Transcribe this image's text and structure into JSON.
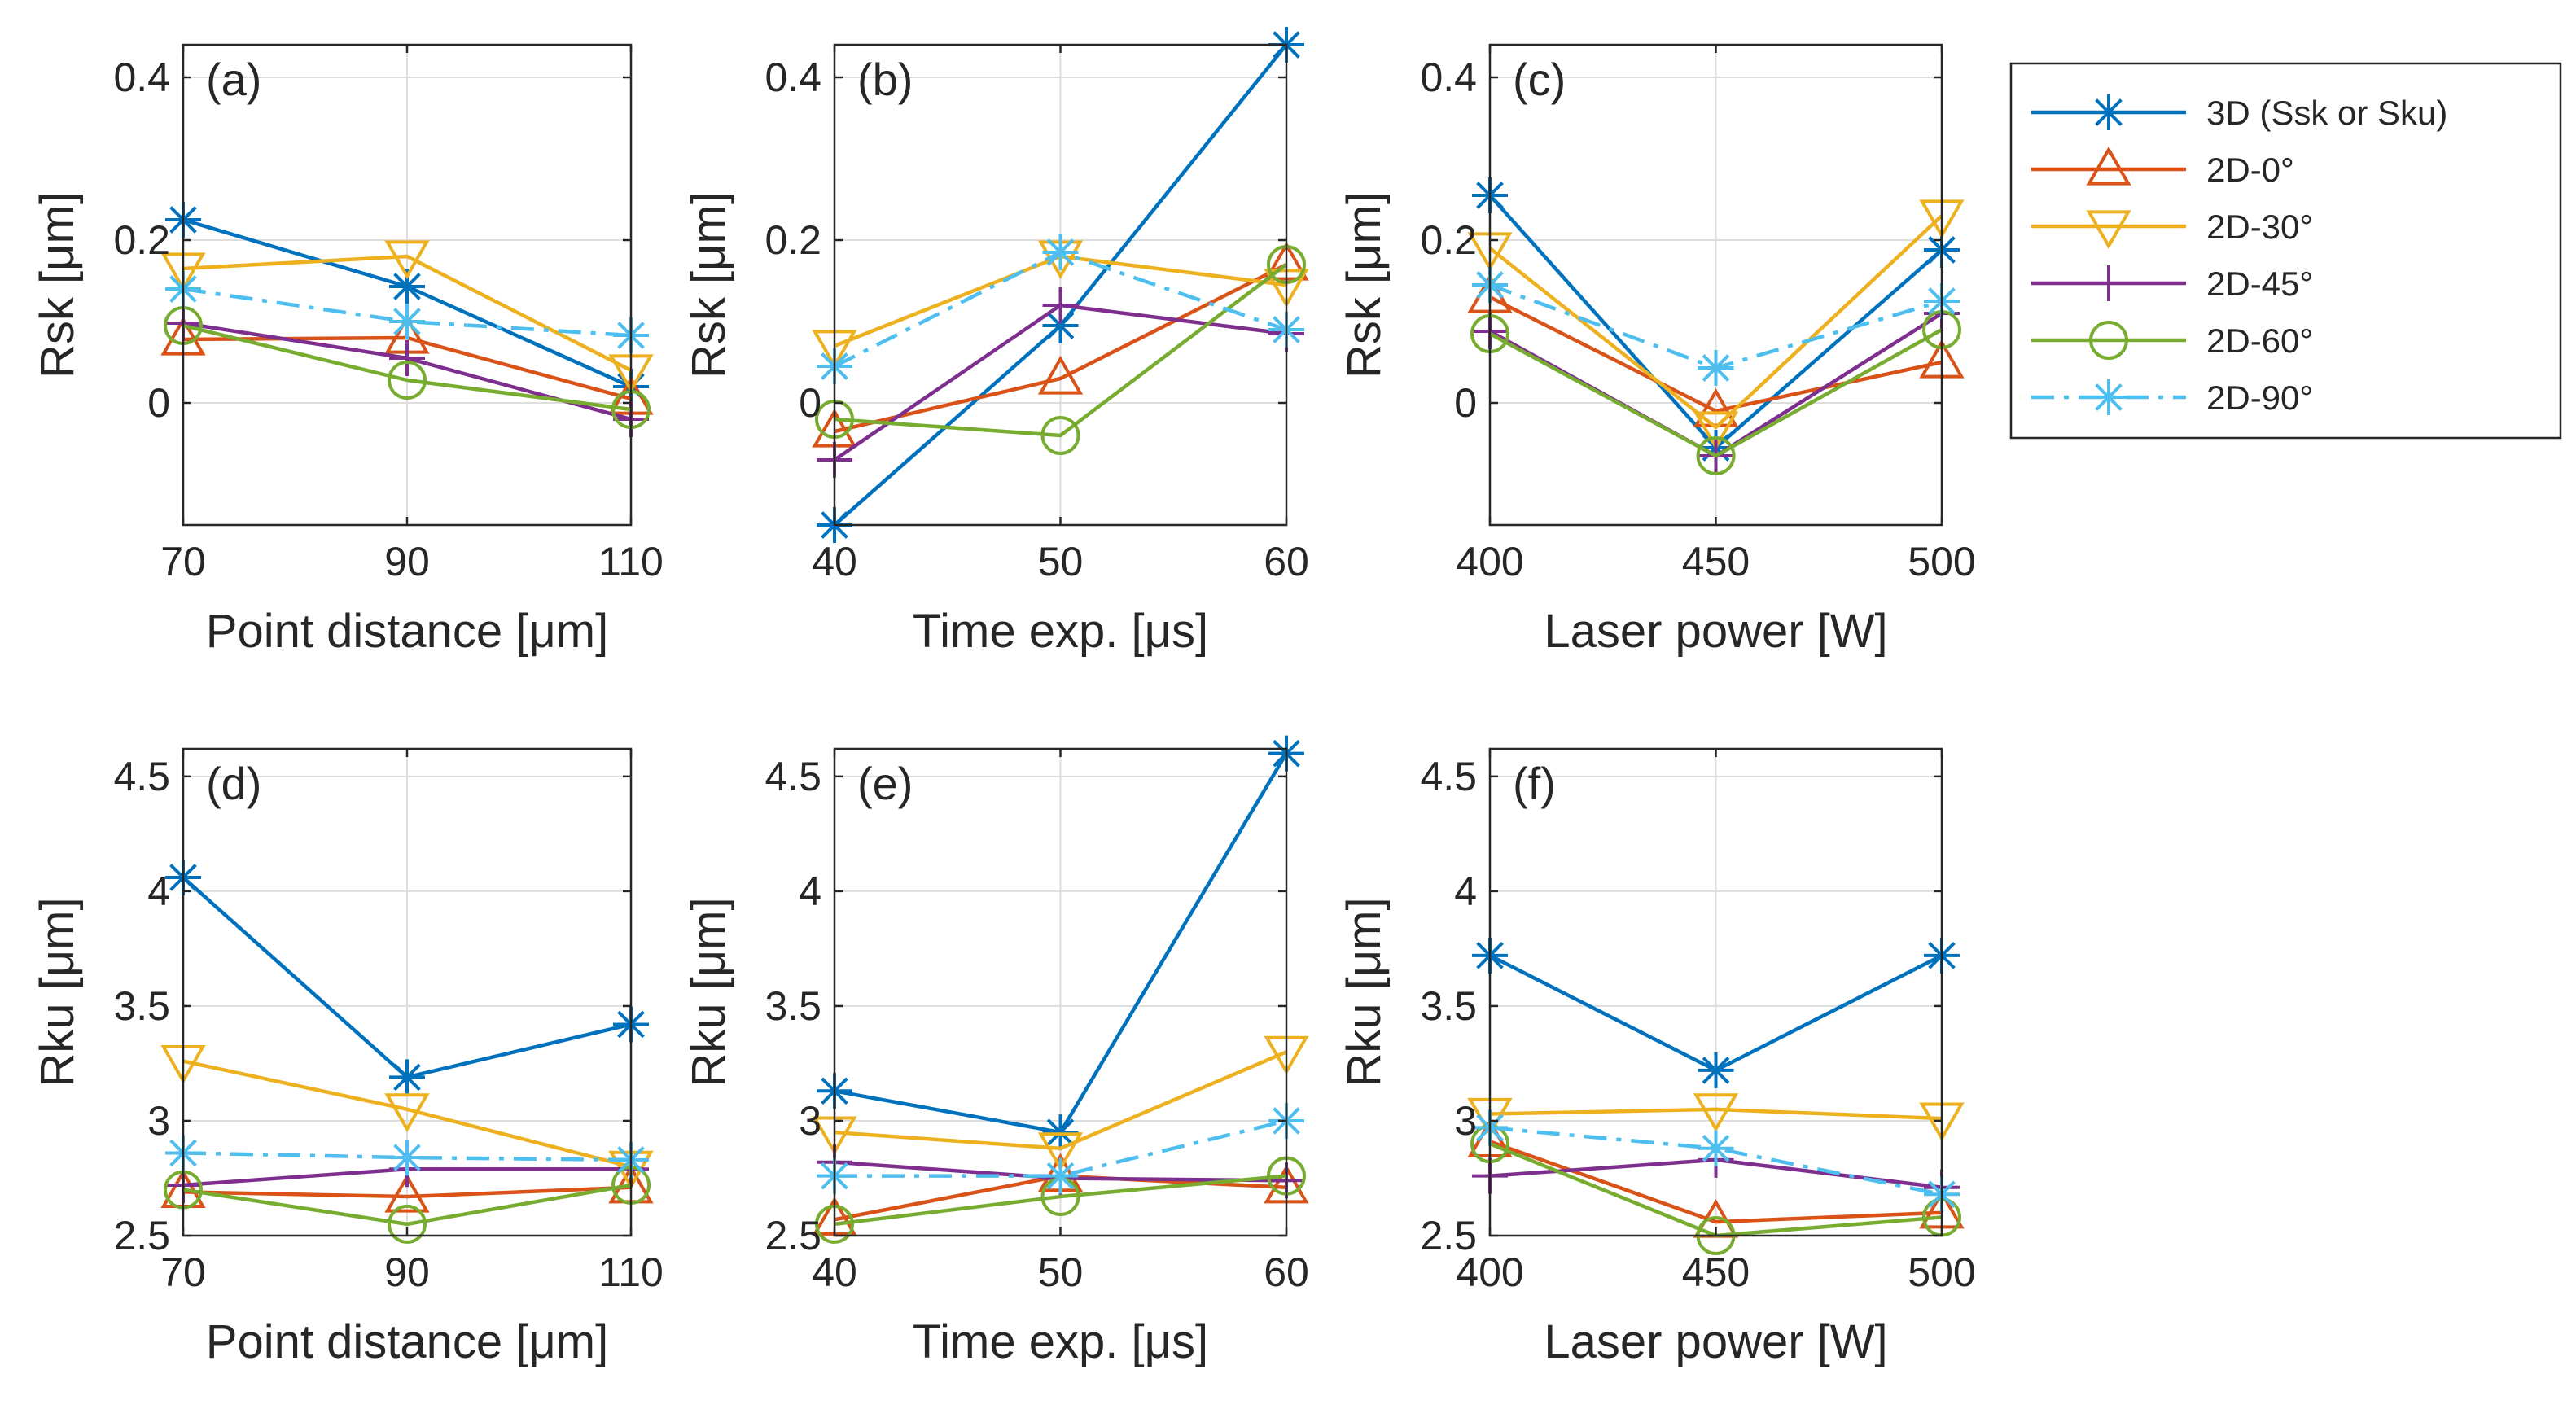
{
  "series_styles": [
    {
      "name": "3D (Ssk or Sku)",
      "color": "#0072BD",
      "marker": "asterisk",
      "dash": "solid"
    },
    {
      "name": "2D-0°",
      "color": "#D95319",
      "marker": "triangle-up",
      "dash": "solid"
    },
    {
      "name": "2D-30°",
      "color": "#EDB120",
      "marker": "triangle-down",
      "dash": "solid"
    },
    {
      "name": "2D-45°",
      "color": "#7E2F8E",
      "marker": "plus",
      "dash": "solid"
    },
    {
      "name": "2D-60°",
      "color": "#77AC30",
      "marker": "circle",
      "dash": "solid"
    },
    {
      "name": "2D-90°",
      "color": "#4DBEEE",
      "marker": "asterisk",
      "dash": "dashdot"
    }
  ],
  "chart_data": [
    {
      "type": "line",
      "panel_label": "(a)",
      "xlabel": "Point distance [μm]",
      "ylabel": "Rsk [μm]",
      "x": [
        70,
        90,
        110
      ],
      "xticks": [
        "70",
        "90",
        "110"
      ],
      "ylim": [
        -0.15,
        0.44
      ],
      "yticks": [
        0,
        0.2,
        0.4
      ],
      "ytick_labels": [
        "0",
        "0.2",
        "0.4"
      ],
      "grid": true,
      "series": [
        {
          "name": "3D (Ssk or Sku)",
          "values": [
            0.225,
            0.143,
            0.02
          ]
        },
        {
          "name": "2D-0°",
          "values": [
            0.078,
            0.08,
            0.005
          ]
        },
        {
          "name": "2D-30°",
          "values": [
            0.165,
            0.18,
            0.04
          ]
        },
        {
          "name": "2D-45°",
          "values": [
            0.098,
            0.055,
            -0.02
          ]
        },
        {
          "name": "2D-60°",
          "values": [
            0.095,
            0.028,
            -0.008
          ]
        },
        {
          "name": "2D-90°",
          "values": [
            0.14,
            0.1,
            0.083
          ]
        }
      ]
    },
    {
      "type": "line",
      "panel_label": "(b)",
      "xlabel": "Time exp. [μs]",
      "ylabel": "Rsk [μm]",
      "x": [
        40,
        50,
        60
      ],
      "xticks": [
        "40",
        "50",
        "60"
      ],
      "ylim": [
        -0.15,
        0.44
      ],
      "yticks": [
        0,
        0.2,
        0.4
      ],
      "ytick_labels": [
        "0",
        "0.2",
        "0.4"
      ],
      "grid": true,
      "series": [
        {
          "name": "3D (Ssk or Sku)",
          "values": [
            -0.15,
            0.095,
            0.44
          ]
        },
        {
          "name": "2D-0°",
          "values": [
            -0.035,
            0.03,
            0.17
          ]
        },
        {
          "name": "2D-30°",
          "values": [
            0.07,
            0.18,
            0.145
          ]
        },
        {
          "name": "2D-45°",
          "values": [
            -0.07,
            0.12,
            0.085
          ]
        },
        {
          "name": "2D-60°",
          "values": [
            -0.02,
            -0.04,
            0.17
          ]
        },
        {
          "name": "2D-90°",
          "values": [
            0.045,
            0.185,
            0.09
          ]
        }
      ]
    },
    {
      "type": "line",
      "panel_label": "(c)",
      "xlabel": "Laser power [W]",
      "ylabel": "Rsk [μm]",
      "x": [
        400,
        450,
        500
      ],
      "xticks": [
        "400",
        "450",
        "500"
      ],
      "ylim": [
        -0.15,
        0.44
      ],
      "yticks": [
        0,
        0.2,
        0.4
      ],
      "ytick_labels": [
        "0",
        "0.2",
        "0.4"
      ],
      "grid": true,
      "series": [
        {
          "name": "3D (Ssk or Sku)",
          "values": [
            0.255,
            -0.055,
            0.188
          ]
        },
        {
          "name": "2D-0°",
          "values": [
            0.13,
            -0.01,
            0.05
          ]
        },
        {
          "name": "2D-30°",
          "values": [
            0.19,
            -0.03,
            0.23
          ]
        },
        {
          "name": "2D-45°",
          "values": [
            0.088,
            -0.065,
            0.11
          ]
        },
        {
          "name": "2D-60°",
          "values": [
            0.085,
            -0.065,
            0.09
          ]
        },
        {
          "name": "2D-90°",
          "values": [
            0.145,
            0.043,
            0.125
          ]
        }
      ]
    },
    {
      "type": "line",
      "panel_label": "(d)",
      "xlabel": "Point distance [μm]",
      "ylabel": "Rku [μm]",
      "x": [
        70,
        90,
        110
      ],
      "xticks": [
        "70",
        "90",
        "110"
      ],
      "ylim": [
        2.5,
        4.62
      ],
      "yticks": [
        2.5,
        3,
        3.5,
        4,
        4.5
      ],
      "ytick_labels": [
        "2.5",
        "3",
        "3.5",
        "4",
        "4.5"
      ],
      "grid": true,
      "series": [
        {
          "name": "3D (Ssk or Sku)",
          "values": [
            4.06,
            3.19,
            3.42
          ]
        },
        {
          "name": "2D-0°",
          "values": [
            2.69,
            2.67,
            2.71
          ]
        },
        {
          "name": "2D-30°",
          "values": [
            3.26,
            3.05,
            2.8
          ]
        },
        {
          "name": "2D-45°",
          "values": [
            2.72,
            2.79,
            2.79
          ]
        },
        {
          "name": "2D-60°",
          "values": [
            2.7,
            2.55,
            2.72
          ]
        },
        {
          "name": "2D-90°",
          "values": [
            2.86,
            2.84,
            2.83
          ]
        }
      ]
    },
    {
      "type": "line",
      "panel_label": "(e)",
      "xlabel": "Time exp. [μs]",
      "ylabel": "Rku [μm]",
      "x": [
        40,
        50,
        60
      ],
      "xticks": [
        "40",
        "50",
        "60"
      ],
      "ylim": [
        2.5,
        4.62
      ],
      "yticks": [
        2.5,
        3,
        3.5,
        4,
        4.5
      ],
      "ytick_labels": [
        "2.5",
        "3",
        "3.5",
        "4",
        "4.5"
      ],
      "grid": true,
      "series": [
        {
          "name": "3D (Ssk or Sku)",
          "values": [
            3.13,
            2.95,
            4.6
          ]
        },
        {
          "name": "2D-0°",
          "values": [
            2.57,
            2.76,
            2.71
          ]
        },
        {
          "name": "2D-30°",
          "values": [
            2.95,
            2.88,
            3.3
          ]
        },
        {
          "name": "2D-45°",
          "values": [
            2.82,
            2.75,
            2.74
          ]
        },
        {
          "name": "2D-60°",
          "values": [
            2.55,
            2.67,
            2.76
          ]
        },
        {
          "name": "2D-90°",
          "values": [
            2.76,
            2.76,
            3.0
          ]
        }
      ]
    },
    {
      "type": "line",
      "panel_label": "(f)",
      "xlabel": "Laser power [W]",
      "ylabel": "Rku [μm]",
      "x": [
        400,
        450,
        500
      ],
      "xticks": [
        "400",
        "450",
        "500"
      ],
      "ylim": [
        2.5,
        4.62
      ],
      "yticks": [
        2.5,
        3,
        3.5,
        4,
        4.5
      ],
      "ytick_labels": [
        "2.5",
        "3",
        "3.5",
        "4",
        "4.5"
      ],
      "grid": true,
      "series": [
        {
          "name": "3D (Ssk or Sku)",
          "values": [
            3.72,
            3.22,
            3.72
          ]
        },
        {
          "name": "2D-0°",
          "values": [
            2.91,
            2.56,
            2.6
          ]
        },
        {
          "name": "2D-30°",
          "values": [
            3.03,
            3.05,
            3.01
          ]
        },
        {
          "name": "2D-45°",
          "values": [
            2.76,
            2.83,
            2.71
          ]
        },
        {
          "name": "2D-60°",
          "values": [
            2.9,
            2.5,
            2.58
          ]
        },
        {
          "name": "2D-90°",
          "values": [
            2.97,
            2.88,
            2.68
          ]
        }
      ]
    }
  ],
  "legend": {
    "placement": "top-right",
    "entries": [
      "3D (Ssk or Sku)",
      "2D-0°",
      "2D-30°",
      "2D-45°",
      "2D-60°",
      "2D-90°"
    ]
  }
}
